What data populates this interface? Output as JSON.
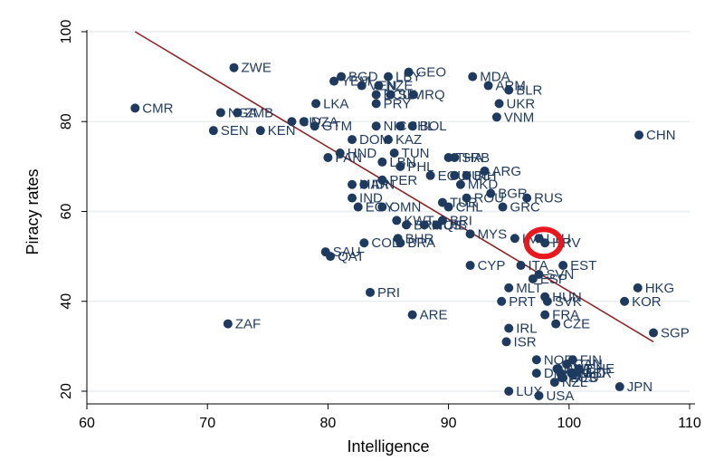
{
  "chart_data": {
    "type": "scatter",
    "title": "",
    "xlabel": "Intelligence",
    "ylabel": "Piracy rates",
    "xlim": [
      60,
      110
    ],
    "ylim": [
      20,
      100
    ],
    "xticks": [
      60,
      70,
      80,
      90,
      100,
      110
    ],
    "yticks": [
      20,
      40,
      60,
      80,
      100
    ],
    "grid": "horizontal",
    "legend": "none",
    "colors": {
      "marker": "#1f3a5f",
      "fitline": "#8b2525",
      "highlight": "#e8181e",
      "axis": "#000000",
      "grid": "#e8edf0"
    },
    "fit_line": {
      "x": [
        64,
        107
      ],
      "y": [
        100,
        31
      ]
    },
    "highlight": {
      "x": 97.9,
      "y": 53,
      "shape": "ellipse",
      "color": "#e8181e"
    },
    "points": [
      {
        "label": "ZWE",
        "x": 72.2,
        "y": 92
      },
      {
        "label": "CMR",
        "x": 64,
        "y": 83
      },
      {
        "label": "NGA",
        "x": 71.1,
        "y": 82
      },
      {
        "label": "ZMB",
        "x": 72.5,
        "y": 82
      },
      {
        "label": "SEN",
        "x": 70.5,
        "y": 78
      },
      {
        "label": "KEN",
        "x": 74.4,
        "y": 78
      },
      {
        "label": "ZAF",
        "x": 71.7,
        "y": 35
      },
      {
        "label": "GTM",
        "x": 78.9,
        "y": 79
      },
      {
        "label": "BGD",
        "x": 81.1,
        "y": 90
      },
      {
        "label": "YEM",
        "x": 80.5,
        "y": 89
      },
      {
        "label": "VEN",
        "x": 82.8,
        "y": 88
      },
      {
        "label": "LBY",
        "x": 85,
        "y": 90
      },
      {
        "label": "GEO",
        "x": 86.7,
        "y": 91
      },
      {
        "label": "NZE",
        "x": 84.2,
        "y": 88
      },
      {
        "label": "ECU",
        "x": 84,
        "y": 86
      },
      {
        "label": "IRQ",
        "x": 87.1,
        "y": 86
      },
      {
        "label": "PRY",
        "x": 84,
        "y": 84
      },
      {
        "label": "SLV",
        "x": 85.2,
        "y": 86
      },
      {
        "label": "LKA",
        "x": 79,
        "y": 84
      },
      {
        "label": "CIV",
        "x": 77,
        "y": 80
      },
      {
        "label": "DZA",
        "x": 78,
        "y": 80
      },
      {
        "label": "NIC",
        "x": 84,
        "y": 79
      },
      {
        "label": "BOL",
        "x": 87,
        "y": 79
      },
      {
        "label": "CHL",
        "x": 86,
        "y": 79
      },
      {
        "label": "DOM",
        "x": 82,
        "y": 76
      },
      {
        "label": "KAZ",
        "x": 85,
        "y": 76
      },
      {
        "label": "HND",
        "x": 81,
        "y": 73
      },
      {
        "label": "PAN",
        "x": 80,
        "y": 72
      },
      {
        "label": "TUN",
        "x": 85.5,
        "y": 73
      },
      {
        "label": "LBN",
        "x": 84.5,
        "y": 71
      },
      {
        "label": "PHL",
        "x": 86,
        "y": 70
      },
      {
        "label": "THA",
        "x": 90,
        "y": 72
      },
      {
        "label": "SRB",
        "x": 90.5,
        "y": 72
      },
      {
        "label": "ARG",
        "x": 93,
        "y": 69
      },
      {
        "label": "EGU",
        "x": 88.5,
        "y": 68
      },
      {
        "label": "NUC",
        "x": 90.5,
        "y": 68
      },
      {
        "label": "BIH",
        "x": 91.5,
        "y": 68
      },
      {
        "label": "MKD",
        "x": 91,
        "y": 66
      },
      {
        "label": "IDN",
        "x": 83,
        "y": 66
      },
      {
        "label": "VNM",
        "x": 94,
        "y": 81
      },
      {
        "label": "MDA",
        "x": 92,
        "y": 90
      },
      {
        "label": "ARM",
        "x": 93.3,
        "y": 88
      },
      {
        "label": "BLR",
        "x": 95,
        "y": 87
      },
      {
        "label": "UKR",
        "x": 94.2,
        "y": 84
      },
      {
        "label": "CHN",
        "x": 105.8,
        "y": 77
      },
      {
        "label": "PER",
        "x": 84.5,
        "y": 67
      },
      {
        "label": "MAR",
        "x": 82,
        "y": 66
      },
      {
        "label": "IND",
        "x": 82,
        "y": 63
      },
      {
        "label": "EGY",
        "x": 82.5,
        "y": 61
      },
      {
        "label": "OMN",
        "x": 84.5,
        "y": 61
      },
      {
        "label": "TUR",
        "x": 89.5,
        "y": 62
      },
      {
        "label": "CHL2",
        "x": 90,
        "y": 61
      },
      {
        "label": "ROU",
        "x": 91.5,
        "y": 63
      },
      {
        "label": "BGR",
        "x": 93.5,
        "y": 64
      },
      {
        "label": "GRC",
        "x": 94.5,
        "y": 61
      },
      {
        "label": "RUS",
        "x": 96.5,
        "y": 63
      },
      {
        "label": "KWT",
        "x": 85.7,
        "y": 58
      },
      {
        "label": "BRN",
        "x": 86.5,
        "y": 57
      },
      {
        "label": "MUS",
        "x": 88,
        "y": 57
      },
      {
        "label": "QIB",
        "x": 89,
        "y": 57
      },
      {
        "label": "BRI",
        "x": 89.5,
        "y": 58
      },
      {
        "label": "MYS",
        "x": 91.8,
        "y": 55
      },
      {
        "label": "LVA",
        "x": 95.5,
        "y": 54
      },
      {
        "label": "LTU",
        "x": 97.5,
        "y": 54
      },
      {
        "label": "HRV",
        "x": 98,
        "y": 53
      },
      {
        "label": "SAU",
        "x": 79.8,
        "y": 51
      },
      {
        "label": "QAT",
        "x": 80.2,
        "y": 50
      },
      {
        "label": "COL",
        "x": 83,
        "y": 53
      },
      {
        "label": "BHR",
        "x": 85.8,
        "y": 54
      },
      {
        "label": "BRA",
        "x": 86,
        "y": 53
      },
      {
        "label": "CYP",
        "x": 91.8,
        "y": 48
      },
      {
        "label": "ITA",
        "x": 96,
        "y": 48
      },
      {
        "label": "SVN",
        "x": 97.5,
        "y": 46
      },
      {
        "label": "EST",
        "x": 99.5,
        "y": 48
      },
      {
        "label": "ESP",
        "x": 97,
        "y": 45
      },
      {
        "label": "MLT",
        "x": 95,
        "y": 43
      },
      {
        "label": "HUN",
        "x": 98,
        "y": 41
      },
      {
        "label": "SVK",
        "x": 98.2,
        "y": 40
      },
      {
        "label": "PRT",
        "x": 94.4,
        "y": 40
      },
      {
        "label": "FRA",
        "x": 98,
        "y": 37
      },
      {
        "label": "CZE",
        "x": 98.9,
        "y": 35
      },
      {
        "label": "HKG",
        "x": 105.7,
        "y": 43
      },
      {
        "label": "KOR",
        "x": 104.6,
        "y": 40
      },
      {
        "label": "SGP",
        "x": 107,
        "y": 33
      },
      {
        "label": "PRI",
        "x": 83.5,
        "y": 42
      },
      {
        "label": "ARE",
        "x": 87,
        "y": 37
      },
      {
        "label": "IRL",
        "x": 95,
        "y": 34
      },
      {
        "label": "ISR",
        "x": 94.8,
        "y": 31
      },
      {
        "label": "NOR",
        "x": 97.3,
        "y": 27
      },
      {
        "label": "DNK",
        "x": 97.3,
        "y": 24
      },
      {
        "label": "FIN",
        "x": 100.3,
        "y": 27
      },
      {
        "label": "AUT",
        "x": 99.1,
        "y": 25
      },
      {
        "label": "NLD",
        "x": 100.2,
        "y": 24
      },
      {
        "label": "DEU",
        "x": 99.5,
        "y": 23
      },
      {
        "label": "NZL",
        "x": 98.8,
        "y": 22
      },
      {
        "label": "CAN",
        "x": 99.8,
        "y": 26
      },
      {
        "label": "GBR",
        "x": 100.5,
        "y": 24
      },
      {
        "label": "CHE",
        "x": 100.8,
        "y": 25
      },
      {
        "label": "BEL",
        "x": 99.3,
        "y": 24
      },
      {
        "label": "SWE",
        "x": 99,
        "y": 25
      },
      {
        "label": "AUS",
        "x": 99.4,
        "y": 23
      },
      {
        "label": "JPN",
        "x": 104.2,
        "y": 21
      },
      {
        "label": "LUX",
        "x": 95,
        "y": 20
      },
      {
        "label": "USA",
        "x": 97.5,
        "y": 19
      }
    ]
  }
}
